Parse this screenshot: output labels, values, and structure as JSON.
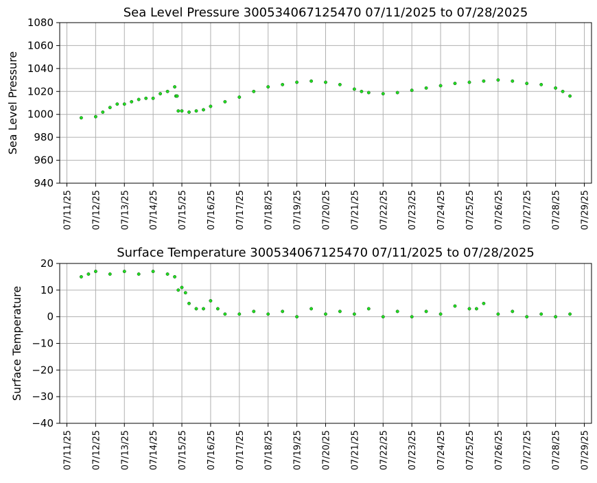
{
  "chart_data": [
    {
      "type": "scatter",
      "title": "Sea Level Pressure 300534067125470  07/11/2025 to 07/28/2025",
      "xlabel": "",
      "ylabel": "Sea Level Pressure",
      "ylim": [
        940,
        1080
      ],
      "yticks": [
        940,
        960,
        980,
        1000,
        1020,
        1040,
        1060,
        1080
      ],
      "xlim": [
        "2025-07-10T18:00",
        "2025-07-29T06:00"
      ],
      "xticks": [
        "07/11/25",
        "07/12/25",
        "07/13/25",
        "07/14/25",
        "07/15/25",
        "07/16/25",
        "07/17/25",
        "07/18/25",
        "07/19/25",
        "07/20/25",
        "07/21/25",
        "07/22/25",
        "07/23/25",
        "07/24/25",
        "07/25/25",
        "07/26/25",
        "07/27/25",
        "07/28/25",
        "07/29/25"
      ],
      "grid": true,
      "marker_color": "#22dd22",
      "series": [
        {
          "x": [
            "2025-07-11T12:00",
            "2025-07-12T00:00",
            "2025-07-12T06:00",
            "2025-07-12T12:00",
            "2025-07-12T18:00",
            "2025-07-13T00:00",
            "2025-07-13T06:00",
            "2025-07-13T12:00",
            "2025-07-13T18:00",
            "2025-07-14T00:00",
            "2025-07-14T06:00",
            "2025-07-14T12:00",
            "2025-07-14T18:00",
            "2025-07-14T19:00",
            "2025-07-14T20:00",
            "2025-07-14T21:00",
            "2025-07-15T00:00",
            "2025-07-15T06:00",
            "2025-07-15T12:00",
            "2025-07-15T18:00",
            "2025-07-16T00:00",
            "2025-07-16T12:00",
            "2025-07-17T00:00",
            "2025-07-17T12:00",
            "2025-07-18T00:00",
            "2025-07-18T12:00",
            "2025-07-19T00:00",
            "2025-07-19T12:00",
            "2025-07-20T00:00",
            "2025-07-20T12:00",
            "2025-07-21T00:00",
            "2025-07-21T06:00",
            "2025-07-21T12:00",
            "2025-07-22T00:00",
            "2025-07-22T12:00",
            "2025-07-23T00:00",
            "2025-07-23T12:00",
            "2025-07-24T00:00",
            "2025-07-24T12:00",
            "2025-07-25T00:00",
            "2025-07-25T12:00",
            "2025-07-26T00:00",
            "2025-07-26T12:00",
            "2025-07-27T00:00",
            "2025-07-27T12:00",
            "2025-07-28T00:00",
            "2025-07-28T06:00",
            "2025-07-28T12:00"
          ],
          "y": [
            997,
            998,
            1002,
            1006,
            1009,
            1009,
            1011,
            1013,
            1014,
            1014,
            1018,
            1020,
            1024,
            1016,
            1016,
            1003,
            1003,
            1002,
            1003,
            1004,
            1007,
            1011,
            1015,
            1020,
            1024,
            1026,
            1028,
            1029,
            1028,
            1026,
            1022,
            1020,
            1019,
            1018,
            1019,
            1021,
            1023,
            1025,
            1027,
            1028,
            1029,
            1030,
            1029,
            1027,
            1026,
            1023,
            1020,
            1016
          ]
        }
      ]
    },
    {
      "type": "scatter",
      "title": "Surface Temperature 300534067125470  07/11/2025 to 07/28/2025",
      "xlabel": "",
      "ylabel": "Surface Temperature",
      "ylim": [
        -40,
        20
      ],
      "yticks": [
        -40,
        -30,
        -20,
        -10,
        0,
        10,
        20
      ],
      "xlim": [
        "2025-07-10T18:00",
        "2025-07-29T06:00"
      ],
      "xticks": [
        "07/11/25",
        "07/12/25",
        "07/13/25",
        "07/14/25",
        "07/15/25",
        "07/16/25",
        "07/17/25",
        "07/18/25",
        "07/19/25",
        "07/20/25",
        "07/21/25",
        "07/22/25",
        "07/23/25",
        "07/24/25",
        "07/25/25",
        "07/26/25",
        "07/27/25",
        "07/28/25",
        "07/29/25"
      ],
      "grid": true,
      "marker_color": "#22dd22",
      "series": [
        {
          "x": [
            "2025-07-11T12:00",
            "2025-07-11T18:00",
            "2025-07-12T00:00",
            "2025-07-12T12:00",
            "2025-07-13T00:00",
            "2025-07-13T12:00",
            "2025-07-14T00:00",
            "2025-07-14T12:00",
            "2025-07-14T18:00",
            "2025-07-14T21:00",
            "2025-07-15T00:00",
            "2025-07-15T03:00",
            "2025-07-15T06:00",
            "2025-07-15T12:00",
            "2025-07-15T18:00",
            "2025-07-16T00:00",
            "2025-07-16T06:00",
            "2025-07-16T12:00",
            "2025-07-17T00:00",
            "2025-07-17T12:00",
            "2025-07-18T00:00",
            "2025-07-18T12:00",
            "2025-07-19T00:00",
            "2025-07-19T12:00",
            "2025-07-20T00:00",
            "2025-07-20T12:00",
            "2025-07-21T00:00",
            "2025-07-21T12:00",
            "2025-07-22T00:00",
            "2025-07-22T12:00",
            "2025-07-23T00:00",
            "2025-07-23T12:00",
            "2025-07-24T00:00",
            "2025-07-24T12:00",
            "2025-07-25T00:00",
            "2025-07-25T06:00",
            "2025-07-25T12:00",
            "2025-07-26T00:00",
            "2025-07-26T12:00",
            "2025-07-27T00:00",
            "2025-07-27T12:00",
            "2025-07-28T00:00",
            "2025-07-28T12:00"
          ],
          "y": [
            15,
            16,
            17,
            16,
            17,
            16,
            17,
            16,
            15,
            10,
            11,
            9,
            5,
            3,
            3,
            6,
            3,
            1,
            1,
            2,
            1,
            2,
            0,
            3,
            1,
            2,
            1,
            3,
            0,
            2,
            0,
            2,
            1,
            4,
            3,
            3,
            5,
            1,
            2,
            0,
            1,
            0,
            1
          ]
        }
      ]
    }
  ]
}
